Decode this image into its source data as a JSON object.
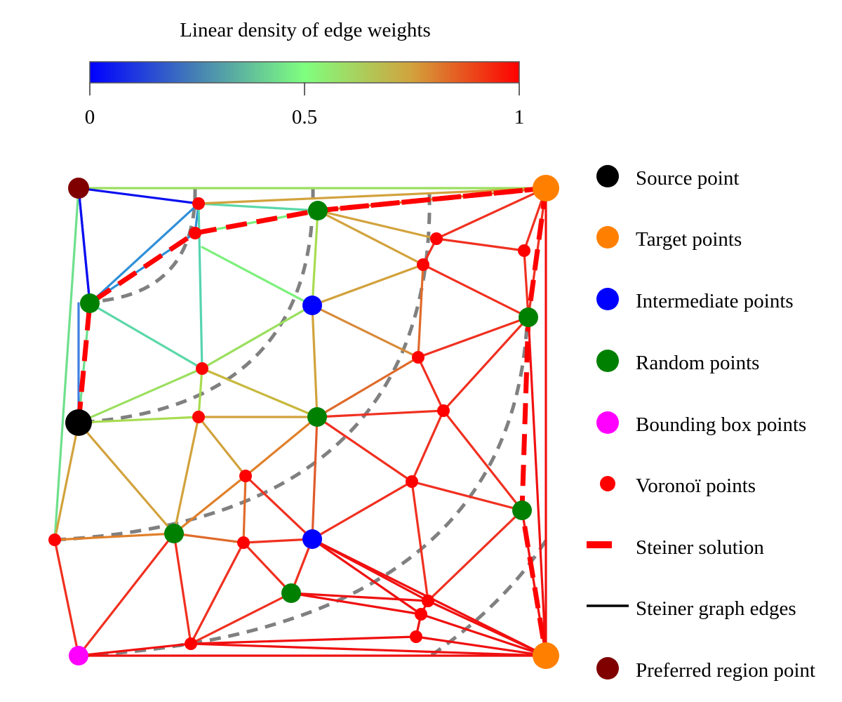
{
  "colorbar": {
    "title": "Linear density of edge weights",
    "ticks": [
      {
        "value": 0,
        "label": "0"
      },
      {
        "value": 0.5,
        "label": "0.5"
      },
      {
        "value": 1,
        "label": "1"
      }
    ],
    "gradient_colors": [
      "#0000ff",
      "#4682b4",
      "#7fff7f",
      "#d2a23c",
      "#ff0000"
    ]
  },
  "legend": {
    "items": [
      {
        "key": "source",
        "label": "Source point",
        "symbol": "dot",
        "color": "#000000"
      },
      {
        "key": "target",
        "label": "Target points",
        "symbol": "dot",
        "color": "#ff8000"
      },
      {
        "key": "intermediate",
        "label": "Intermediate points",
        "symbol": "dot",
        "color": "#0000ff"
      },
      {
        "key": "random",
        "label": "Random points",
        "symbol": "dot",
        "color": "#008000"
      },
      {
        "key": "bbox",
        "label": "Bounding box points",
        "symbol": "dot",
        "color": "#ff00ff"
      },
      {
        "key": "voronoi",
        "label": "Voronoï points",
        "symbol": "small-dot",
        "color": "#ff0000"
      },
      {
        "key": "solution",
        "label": "Steiner solution",
        "symbol": "dash",
        "color": "#ff0000"
      },
      {
        "key": "edges",
        "label": "Steiner graph edges",
        "symbol": "line",
        "color": "#000000"
      },
      {
        "key": "preferred",
        "label": "Preferred region point",
        "symbol": "dot",
        "color": "#800000"
      }
    ]
  },
  "colors": {
    "isoline": "#808080",
    "solution": "#ff0000"
  }
}
